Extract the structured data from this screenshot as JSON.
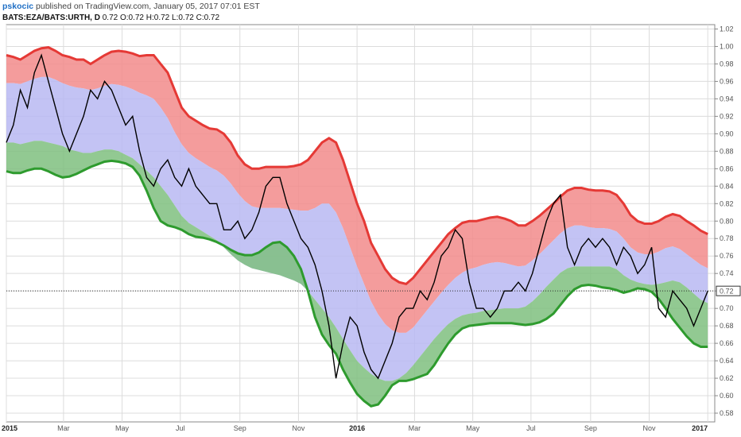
{
  "header": {
    "author": "pskocic",
    "published": "published on TradingView.com, January 05, 2017 07:01 EST",
    "symbol": "BATS:EZA/BATS:URTH, D",
    "ohlc": "0.72 O:0.72 H:0.72 L:0.72 C:0.72"
  },
  "colors": {
    "upper_band": "#e53935",
    "upper_fill": "#f28b8b",
    "mid_fill": "#b9b9f2",
    "lower_band": "#2e9b2e",
    "lower_fill": "#7fc07f",
    "price": "#000000"
  },
  "chart_data": {
    "type": "line",
    "x_ticks": [
      "2015",
      "Mar",
      "May",
      "Jul",
      "Sep",
      "Nov",
      "2016",
      "Mar",
      "May",
      "Jul",
      "Sep",
      "Nov",
      "2017"
    ],
    "y_ticks": [
      "1.02",
      "1.00",
      "0.98",
      "0.96",
      "0.94",
      "0.92",
      "0.90",
      "0.88",
      "0.86",
      "0.84",
      "0.82",
      "0.80",
      "0.78",
      "0.76",
      "0.74",
      "0.72",
      "0.70",
      "0.68",
      "0.66",
      "0.64",
      "0.62",
      "0.60",
      "0.58"
    ],
    "ylim": [
      0.57,
      1.025
    ],
    "xlim": [
      2015.0,
      2017.02
    ],
    "last_value_label": "0.72",
    "price_line_level": 0.72,
    "series": [
      {
        "role": "price",
        "x": [
          2015.0,
          2015.02,
          2015.04,
          2015.06,
          2015.08,
          2015.1,
          2015.12,
          2015.14,
          2015.16,
          2015.18,
          2015.2,
          2015.22,
          2015.24,
          2015.26,
          2015.28,
          2015.3,
          2015.32,
          2015.34,
          2015.36,
          2015.38,
          2015.4,
          2015.42,
          2015.44,
          2015.46,
          2015.48,
          2015.5,
          2015.52,
          2015.54,
          2015.56,
          2015.58,
          2015.6,
          2015.62,
          2015.64,
          2015.66,
          2015.68,
          2015.7,
          2015.72,
          2015.74,
          2015.76,
          2015.78,
          2015.8,
          2015.82,
          2015.84,
          2015.86,
          2015.88,
          2015.9,
          2015.92,
          2015.94,
          2015.96,
          2015.98,
          2016.0,
          2016.02,
          2016.04,
          2016.06,
          2016.08,
          2016.1,
          2016.12,
          2016.14,
          2016.16,
          2016.18,
          2016.2,
          2016.22,
          2016.24,
          2016.26,
          2016.28,
          2016.3,
          2016.32,
          2016.34,
          2016.36,
          2016.38,
          2016.4,
          2016.42,
          2016.44,
          2016.46,
          2016.48,
          2016.5,
          2016.52,
          2016.54,
          2016.56,
          2016.58,
          2016.6,
          2016.62,
          2016.64,
          2016.66,
          2016.68,
          2016.7,
          2016.72,
          2016.74,
          2016.76,
          2016.78,
          2016.8,
          2016.82,
          2016.84,
          2016.86,
          2016.88,
          2016.9,
          2016.92,
          2016.94,
          2016.96,
          2016.98,
          2017.0
        ],
        "values": [
          0.89,
          0.91,
          0.95,
          0.93,
          0.97,
          0.99,
          0.96,
          0.93,
          0.9,
          0.88,
          0.9,
          0.92,
          0.95,
          0.94,
          0.96,
          0.95,
          0.93,
          0.91,
          0.92,
          0.88,
          0.85,
          0.84,
          0.86,
          0.87,
          0.85,
          0.84,
          0.86,
          0.84,
          0.83,
          0.82,
          0.82,
          0.79,
          0.79,
          0.8,
          0.78,
          0.79,
          0.81,
          0.84,
          0.85,
          0.85,
          0.82,
          0.8,
          0.78,
          0.77,
          0.75,
          0.72,
          0.68,
          0.62,
          0.66,
          0.69,
          0.68,
          0.65,
          0.63,
          0.62,
          0.64,
          0.66,
          0.69,
          0.7,
          0.7,
          0.72,
          0.71,
          0.73,
          0.76,
          0.77,
          0.79,
          0.78,
          0.73,
          0.7,
          0.7,
          0.69,
          0.7,
          0.72,
          0.72,
          0.73,
          0.72,
          0.74,
          0.77,
          0.8,
          0.82,
          0.83,
          0.77,
          0.75,
          0.77,
          0.78,
          0.77,
          0.78,
          0.77,
          0.75,
          0.77,
          0.76,
          0.74,
          0.75,
          0.77,
          0.7,
          0.69,
          0.72,
          0.71,
          0.7,
          0.68,
          0.7,
          0.72
        ]
      },
      {
        "role": "upper",
        "x": [
          2015.0,
          2015.02,
          2015.04,
          2015.06,
          2015.08,
          2015.1,
          2015.12,
          2015.14,
          2015.16,
          2015.18,
          2015.2,
          2015.22,
          2015.24,
          2015.26,
          2015.28,
          2015.3,
          2015.32,
          2015.34,
          2015.36,
          2015.38,
          2015.4,
          2015.42,
          2015.44,
          2015.46,
          2015.48,
          2015.5,
          2015.52,
          2015.54,
          2015.56,
          2015.58,
          2015.6,
          2015.62,
          2015.64,
          2015.66,
          2015.68,
          2015.7,
          2015.72,
          2015.74,
          2015.76,
          2015.78,
          2015.8,
          2015.82,
          2015.84,
          2015.86,
          2015.88,
          2015.9,
          2015.92,
          2015.94,
          2015.96,
          2015.98,
          2016.0,
          2016.02,
          2016.04,
          2016.06,
          2016.08,
          2016.1,
          2016.12,
          2016.14,
          2016.16,
          2016.18,
          2016.2,
          2016.22,
          2016.24,
          2016.26,
          2016.28,
          2016.3,
          2016.32,
          2016.34,
          2016.36,
          2016.38,
          2016.4,
          2016.42,
          2016.44,
          2016.46,
          2016.48,
          2016.5,
          2016.52,
          2016.54,
          2016.56,
          2016.58,
          2016.6,
          2016.62,
          2016.64,
          2016.66,
          2016.68,
          2016.7,
          2016.72,
          2016.74,
          2016.76,
          2016.78,
          2016.8,
          2016.82,
          2016.84,
          2016.86,
          2016.88,
          2016.9,
          2016.92,
          2016.94,
          2016.96,
          2016.98,
          2017.0
        ],
        "values": [
          0.99,
          0.988,
          0.985,
          0.99,
          0.995,
          0.998,
          0.999,
          0.995,
          0.99,
          0.988,
          0.985,
          0.985,
          0.98,
          0.985,
          0.99,
          0.994,
          0.995,
          0.994,
          0.992,
          0.989,
          0.99,
          0.99,
          0.98,
          0.97,
          0.95,
          0.93,
          0.92,
          0.915,
          0.91,
          0.906,
          0.905,
          0.9,
          0.89,
          0.875,
          0.865,
          0.86,
          0.86,
          0.862,
          0.862,
          0.862,
          0.862,
          0.863,
          0.865,
          0.87,
          0.88,
          0.89,
          0.895,
          0.89,
          0.87,
          0.845,
          0.82,
          0.8,
          0.775,
          0.76,
          0.745,
          0.735,
          0.73,
          0.728,
          0.735,
          0.745,
          0.755,
          0.765,
          0.775,
          0.785,
          0.792,
          0.798,
          0.8,
          0.8,
          0.802,
          0.804,
          0.805,
          0.803,
          0.8,
          0.795,
          0.795,
          0.8,
          0.806,
          0.813,
          0.82,
          0.828,
          0.835,
          0.838,
          0.838,
          0.836,
          0.835,
          0.835,
          0.834,
          0.83,
          0.82,
          0.807,
          0.8,
          0.797,
          0.797,
          0.8,
          0.805,
          0.808,
          0.806,
          0.8,
          0.795,
          0.789,
          0.785
        ]
      },
      {
        "role": "upper_inner",
        "x": [
          2015.0,
          2015.02,
          2015.04,
          2015.06,
          2015.08,
          2015.1,
          2015.12,
          2015.14,
          2015.16,
          2015.18,
          2015.2,
          2015.22,
          2015.24,
          2015.26,
          2015.28,
          2015.3,
          2015.32,
          2015.34,
          2015.36,
          2015.38,
          2015.4,
          2015.42,
          2015.44,
          2015.46,
          2015.48,
          2015.5,
          2015.52,
          2015.54,
          2015.56,
          2015.58,
          2015.6,
          2015.62,
          2015.64,
          2015.66,
          2015.68,
          2015.7,
          2015.72,
          2015.74,
          2015.76,
          2015.78,
          2015.8,
          2015.82,
          2015.84,
          2015.86,
          2015.88,
          2015.9,
          2015.92,
          2015.94,
          2015.96,
          2015.98,
          2016.0,
          2016.02,
          2016.04,
          2016.06,
          2016.08,
          2016.1,
          2016.12,
          2016.14,
          2016.16,
          2016.18,
          2016.2,
          2016.22,
          2016.24,
          2016.26,
          2016.28,
          2016.3,
          2016.32,
          2016.34,
          2016.36,
          2016.38,
          2016.4,
          2016.42,
          2016.44,
          2016.46,
          2016.48,
          2016.5,
          2016.52,
          2016.54,
          2016.56,
          2016.58,
          2016.6,
          2016.62,
          2016.64,
          2016.66,
          2016.68,
          2016.7,
          2016.72,
          2016.74,
          2016.76,
          2016.78,
          2016.8,
          2016.82,
          2016.84,
          2016.86,
          2016.88,
          2016.9,
          2016.92,
          2016.94,
          2016.96,
          2016.98,
          2017.0
        ],
        "values": [
          0.958,
          0.958,
          0.957,
          0.96,
          0.963,
          0.965,
          0.965,
          0.962,
          0.958,
          0.955,
          0.953,
          0.952,
          0.95,
          0.952,
          0.955,
          0.957,
          0.956,
          0.954,
          0.951,
          0.947,
          0.944,
          0.94,
          0.93,
          0.918,
          0.902,
          0.888,
          0.878,
          0.872,
          0.867,
          0.862,
          0.858,
          0.852,
          0.843,
          0.832,
          0.823,
          0.817,
          0.815,
          0.815,
          0.815,
          0.815,
          0.814,
          0.813,
          0.812,
          0.812,
          0.815,
          0.82,
          0.82,
          0.81,
          0.792,
          0.77,
          0.748,
          0.728,
          0.708,
          0.693,
          0.682,
          0.675,
          0.672,
          0.672,
          0.678,
          0.688,
          0.698,
          0.708,
          0.718,
          0.727,
          0.735,
          0.741,
          0.745,
          0.747,
          0.75,
          0.752,
          0.753,
          0.752,
          0.75,
          0.748,
          0.749,
          0.755,
          0.762,
          0.77,
          0.778,
          0.786,
          0.792,
          0.795,
          0.795,
          0.793,
          0.792,
          0.792,
          0.791,
          0.788,
          0.78,
          0.77,
          0.764,
          0.762,
          0.762,
          0.765,
          0.769,
          0.771,
          0.768,
          0.762,
          0.756,
          0.75,
          0.746
        ]
      },
      {
        "role": "lower_inner",
        "x": [
          2015.0,
          2015.02,
          2015.04,
          2015.06,
          2015.08,
          2015.1,
          2015.12,
          2015.14,
          2015.16,
          2015.18,
          2015.2,
          2015.22,
          2015.24,
          2015.26,
          2015.28,
          2015.3,
          2015.32,
          2015.34,
          2015.36,
          2015.38,
          2015.4,
          2015.42,
          2015.44,
          2015.46,
          2015.48,
          2015.5,
          2015.52,
          2015.54,
          2015.56,
          2015.58,
          2015.6,
          2015.62,
          2015.64,
          2015.66,
          2015.68,
          2015.7,
          2015.72,
          2015.74,
          2015.76,
          2015.78,
          2015.8,
          2015.82,
          2015.84,
          2015.86,
          2015.88,
          2015.9,
          2015.92,
          2015.94,
          2015.96,
          2015.98,
          2016.0,
          2016.02,
          2016.04,
          2016.06,
          2016.08,
          2016.1,
          2016.12,
          2016.14,
          2016.16,
          2016.18,
          2016.2,
          2016.22,
          2016.24,
          2016.26,
          2016.28,
          2016.3,
          2016.32,
          2016.34,
          2016.36,
          2016.38,
          2016.4,
          2016.42,
          2016.44,
          2016.46,
          2016.48,
          2016.5,
          2016.52,
          2016.54,
          2016.56,
          2016.58,
          2016.6,
          2016.62,
          2016.64,
          2016.66,
          2016.68,
          2016.7,
          2016.72,
          2016.74,
          2016.76,
          2016.78,
          2016.8,
          2016.82,
          2016.84,
          2016.86,
          2016.88,
          2016.9,
          2016.92,
          2016.94,
          2016.96,
          2016.98,
          2017.0
        ],
        "values": [
          0.89,
          0.89,
          0.888,
          0.89,
          0.892,
          0.892,
          0.89,
          0.888,
          0.886,
          0.882,
          0.88,
          0.878,
          0.878,
          0.88,
          0.882,
          0.882,
          0.88,
          0.876,
          0.872,
          0.865,
          0.858,
          0.85,
          0.84,
          0.83,
          0.818,
          0.806,
          0.798,
          0.793,
          0.788,
          0.783,
          0.778,
          0.77,
          0.762,
          0.755,
          0.75,
          0.746,
          0.744,
          0.742,
          0.74,
          0.738,
          0.735,
          0.732,
          0.728,
          0.72,
          0.71,
          0.7,
          0.69,
          0.678,
          0.665,
          0.652,
          0.64,
          0.632,
          0.625,
          0.62,
          0.617,
          0.617,
          0.62,
          0.626,
          0.635,
          0.645,
          0.655,
          0.665,
          0.674,
          0.682,
          0.688,
          0.692,
          0.694,
          0.695,
          0.697,
          0.698,
          0.699,
          0.7,
          0.7,
          0.7,
          0.702,
          0.708,
          0.716,
          0.725,
          0.733,
          0.741,
          0.746,
          0.748,
          0.748,
          0.748,
          0.748,
          0.748,
          0.748,
          0.745,
          0.738,
          0.733,
          0.73,
          0.728,
          0.727,
          0.728,
          0.73,
          0.732,
          0.73,
          0.724,
          0.717,
          0.71,
          0.706
        ]
      },
      {
        "role": "lower",
        "x": [
          2015.0,
          2015.02,
          2015.04,
          2015.06,
          2015.08,
          2015.1,
          2015.12,
          2015.14,
          2015.16,
          2015.18,
          2015.2,
          2015.22,
          2015.24,
          2015.26,
          2015.28,
          2015.3,
          2015.32,
          2015.34,
          2015.36,
          2015.38,
          2015.4,
          2015.42,
          2015.44,
          2015.46,
          2015.48,
          2015.5,
          2015.52,
          2015.54,
          2015.56,
          2015.58,
          2015.6,
          2015.62,
          2015.64,
          2015.66,
          2015.68,
          2015.7,
          2015.72,
          2015.74,
          2015.76,
          2015.78,
          2015.8,
          2015.82,
          2015.84,
          2015.86,
          2015.88,
          2015.9,
          2015.92,
          2015.94,
          2015.96,
          2015.98,
          2016.0,
          2016.02,
          2016.04,
          2016.06,
          2016.08,
          2016.1,
          2016.12,
          2016.14,
          2016.16,
          2016.18,
          2016.2,
          2016.22,
          2016.24,
          2016.26,
          2016.28,
          2016.3,
          2016.32,
          2016.34,
          2016.36,
          2016.38,
          2016.4,
          2016.42,
          2016.44,
          2016.46,
          2016.48,
          2016.5,
          2016.52,
          2016.54,
          2016.56,
          2016.58,
          2016.6,
          2016.62,
          2016.64,
          2016.66,
          2016.68,
          2016.7,
          2016.72,
          2016.74,
          2016.76,
          2016.78,
          2016.8,
          2016.82,
          2016.84,
          2016.86,
          2016.88,
          2016.9,
          2016.92,
          2016.94,
          2016.96,
          2016.98,
          2017.0
        ],
        "values": [
          0.857,
          0.855,
          0.855,
          0.858,
          0.86,
          0.86,
          0.857,
          0.853,
          0.85,
          0.851,
          0.854,
          0.858,
          0.862,
          0.865,
          0.868,
          0.869,
          0.868,
          0.866,
          0.862,
          0.852,
          0.835,
          0.815,
          0.8,
          0.795,
          0.793,
          0.79,
          0.785,
          0.782,
          0.781,
          0.779,
          0.776,
          0.772,
          0.767,
          0.763,
          0.761,
          0.761,
          0.764,
          0.77,
          0.775,
          0.776,
          0.77,
          0.76,
          0.745,
          0.72,
          0.69,
          0.67,
          0.658,
          0.648,
          0.63,
          0.615,
          0.602,
          0.594,
          0.588,
          0.59,
          0.6,
          0.612,
          0.617,
          0.617,
          0.619,
          0.622,
          0.625,
          0.635,
          0.648,
          0.66,
          0.67,
          0.677,
          0.68,
          0.681,
          0.682,
          0.683,
          0.683,
          0.683,
          0.683,
          0.682,
          0.681,
          0.682,
          0.684,
          0.688,
          0.694,
          0.704,
          0.714,
          0.722,
          0.726,
          0.727,
          0.726,
          0.724,
          0.723,
          0.721,
          0.718,
          0.72,
          0.723,
          0.722,
          0.719,
          0.711,
          0.7,
          0.688,
          0.678,
          0.668,
          0.66,
          0.656,
          0.656
        ]
      }
    ]
  }
}
